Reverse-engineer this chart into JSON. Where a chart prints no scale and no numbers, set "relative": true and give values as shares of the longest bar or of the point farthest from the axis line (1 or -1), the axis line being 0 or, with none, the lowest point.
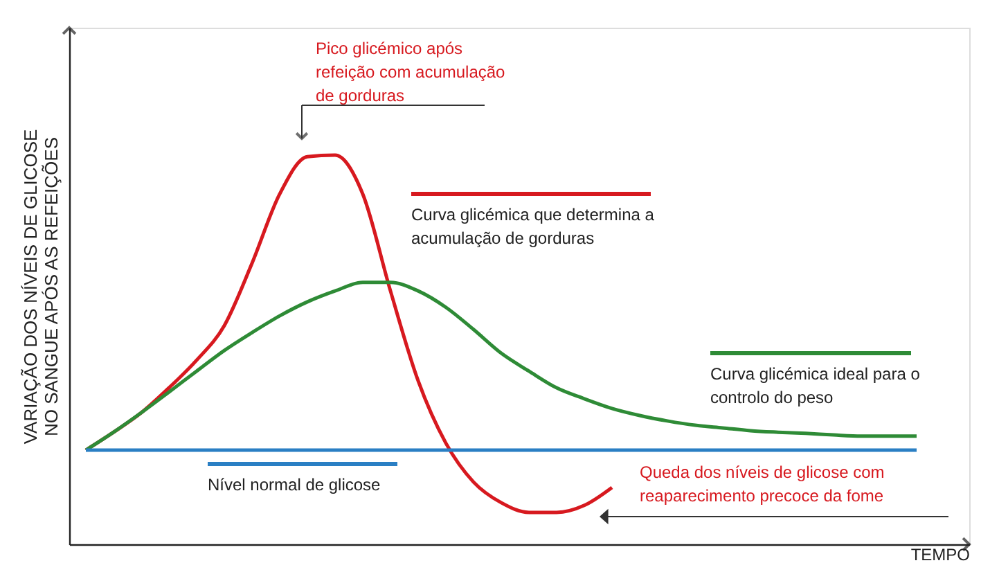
{
  "chart_data": {
    "type": "line",
    "relative": true,
    "xlabel": "TEMPO",
    "ylabel": "VARIAÇÃO DOS NÍVEIS DE GLICOSE NO SANGUE APÓS AS REFEIÇÕES",
    "categories": [
      null,
      null,
      null,
      null,
      null,
      null,
      null,
      null,
      null,
      null,
      null,
      null,
      null,
      null,
      null,
      null,
      null,
      null,
      null,
      null,
      null,
      null,
      null,
      null,
      null,
      null,
      null,
      null,
      null,
      null,
      null
    ],
    "series": [
      {
        "name": "Curva glicémica que determina a acumulação de gorduras",
        "color": "#d7191f",
        "values": [
          0.242,
          0.288,
          0.338,
          0.402,
          0.473,
          0.562,
          0.722,
          0.9,
          0.996,
          1,
          0.9,
          0.651,
          0.42,
          0.26,
          0.16,
          0.107,
          0.082,
          0.082,
          0.1,
          0.146,
          null,
          null,
          null,
          null,
          null,
          null,
          null,
          null,
          null,
          null,
          null
        ]
      },
      {
        "name": "Curva glicémica ideal para o controlo do peso",
        "color": "#2e8b36",
        "values": [
          0.242,
          0.288,
          0.338,
          0.391,
          0.445,
          0.498,
          0.544,
          0.587,
          0.623,
          0.651,
          0.673,
          0.673,
          0.651,
          0.609,
          0.552,
          0.491,
          0.445,
          0.402,
          0.374,
          0.349,
          0.331,
          0.317,
          0.306,
          0.299,
          0.292,
          0.288,
          0.285,
          0.281,
          0.278,
          0.278,
          0.278
        ]
      },
      {
        "name": "Nível normal de glicose",
        "color": "#2a7fc4",
        "values": [
          0.242,
          0.242,
          0.242,
          0.242,
          0.242,
          0.242,
          0.242,
          0.242,
          0.242,
          0.242,
          0.242,
          0.242,
          0.242,
          0.242,
          0.242,
          0.242,
          0.242,
          0.242,
          0.242,
          0.242,
          0.242,
          0.242,
          0.242,
          0.242,
          0.242,
          0.242,
          0.242,
          0.242,
          0.242,
          0.242,
          0.242
        ]
      }
    ],
    "annotations": [
      "Pico glicémico após refeição com acumulação de gorduras",
      "Queda dos níveis de glicose com reaparecimento precoce da fome"
    ]
  }
}
